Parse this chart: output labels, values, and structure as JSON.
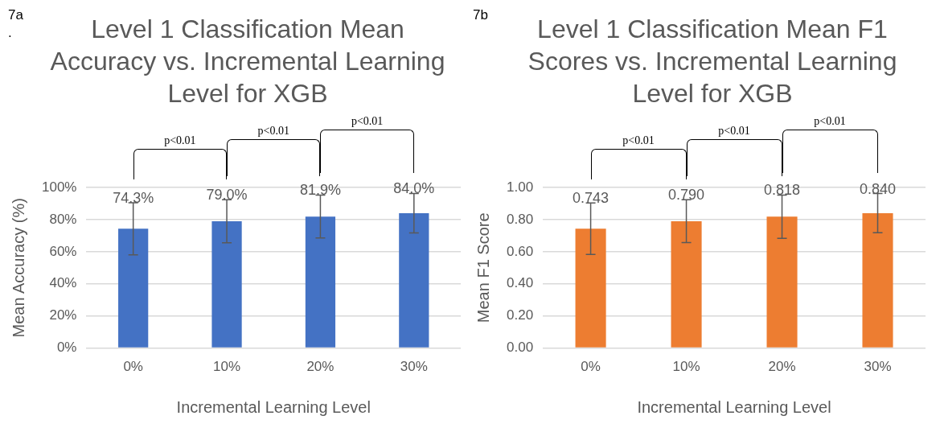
{
  "chart_data": [
    {
      "type": "bar",
      "title": "Level 1 Classification Mean Accuracy vs. Incremental Learning Level for XGB",
      "xlabel": "Incremental Learning Level",
      "ylabel": "Mean Accuracy (%)",
      "categories": [
        "0%",
        "10%",
        "20%",
        "30%"
      ],
      "values": [
        74.3,
        79.0,
        81.9,
        84.0
      ],
      "color": "#4472c4",
      "errors": [
        16.2,
        13.4,
        13.4,
        12.3
      ],
      "value_labels": [
        "74.3%",
        "79.0%",
        "81.9%",
        "84.0%"
      ],
      "ylim": [
        0,
        100
      ],
      "yticks": [
        {
          "value": 0,
          "label": "0%"
        },
        {
          "value": 20,
          "label": "20%"
        },
        {
          "value": 40,
          "label": "40%"
        },
        {
          "value": 60,
          "label": "60%"
        },
        {
          "value": 80,
          "label": "80%"
        },
        {
          "value": 100,
          "label": "100%"
        }
      ],
      "grid": "y",
      "annotations": [
        "7a",
        ".",
        "p<0.01",
        "p<0.01",
        "p<0.01"
      ]
    },
    {
      "type": "bar",
      "title": "Level 1 Classification Mean F1 Scores vs. Incremental Learning Level for XGB",
      "xlabel": "Incremental Learning Level",
      "ylabel": "Mean F1 Score",
      "categories": [
        "0%",
        "10%",
        "20%",
        "30%"
      ],
      "values": [
        0.743,
        0.79,
        0.818,
        0.84
      ],
      "color": "#ed7d31",
      "errors": [
        0.16,
        0.133,
        0.135,
        0.122
      ],
      "value_labels": [
        "0.743",
        "0.790",
        "0.818",
        "0.840"
      ],
      "ylim": [
        0,
        1
      ],
      "yticks": [
        {
          "value": 0,
          "label": "0.00"
        },
        {
          "value": 0.2,
          "label": "0.20"
        },
        {
          "value": 0.4,
          "label": "0.40"
        },
        {
          "value": 0.6,
          "label": "0.60"
        },
        {
          "value": 0.8,
          "label": "0.80"
        },
        {
          "value": 1,
          "label": "1.00"
        }
      ],
      "grid": "y",
      "annotations": [
        "7b",
        "p<0.01",
        "p<0.01",
        "p<0.01"
      ]
    }
  ]
}
